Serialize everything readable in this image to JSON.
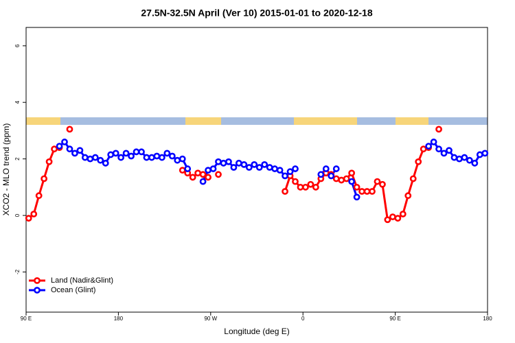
{
  "chart_data": {
    "type": "line",
    "title": "27.5N-32.5N April (Ver 10)   2015-01-01 to 2020-12-18",
    "xlabel": "Longitude (deg E)",
    "ylabel": "XCO2 - MLO trend (ppm)",
    "xlim": [
      90,
      540
    ],
    "ylim": [
      -3.42,
      6.65
    ],
    "xticks": [
      {
        "value": 90,
        "label": "90 E"
      },
      180,
      {
        "value": 270,
        "label": "90 W"
      },
      {
        "value": 360,
        "label": "0"
      },
      {
        "value": 450,
        "label": "90 E"
      },
      {
        "value": 540,
        "label": "180"
      }
    ],
    "yticks": [
      -2,
      0,
      2,
      4,
      6
    ],
    "legend": "bottomleft",
    "x": [
      92.5,
      97.5,
      102.5,
      107.5,
      112.5,
      117.5,
      122.5,
      127.5,
      132.5,
      137.5,
      142.5,
      147.5,
      152.5,
      157.5,
      162.5,
      167.5,
      172.5,
      177.5,
      182.5,
      187.5,
      192.5,
      197.5,
      202.5,
      207.5,
      212.5,
      217.5,
      222.5,
      227.5,
      232.5,
      237.5,
      242.5,
      247.5,
      252.5,
      257.5,
      262.5,
      267.5,
      272.5,
      277.5,
      282.5,
      287.5,
      292.5,
      297.5,
      302.5,
      307.5,
      312.5,
      317.5,
      322.5,
      327.5,
      332.5,
      337.5,
      342.5,
      347.5,
      352.5,
      357.5,
      362.5,
      367.5,
      372.5,
      377.5,
      382.5,
      387.5,
      392.5,
      397.5,
      402.5,
      407.5,
      412.5,
      417.5,
      422.5,
      427.5,
      432.5,
      437.5,
      442.5,
      447.5,
      452.5,
      457.5,
      462.5,
      467.5,
      472.5,
      477.5,
      482.5,
      487.5,
      492.5,
      497.5,
      502.5,
      507.5,
      512.5,
      517.5,
      522.5,
      527.5,
      532.5,
      537.5
    ],
    "series": [
      {
        "name": "Land (Nadir&Glint)",
        "color": "#ff0000",
        "values": [
          -0.1,
          0.05,
          0.7,
          1.3,
          1.9,
          2.35,
          2.4,
          null,
          3.05,
          null,
          null,
          null,
          null,
          null,
          null,
          null,
          null,
          null,
          null,
          null,
          null,
          null,
          null,
          null,
          null,
          null,
          null,
          null,
          null,
          null,
          1.6,
          1.5,
          1.35,
          1.5,
          1.45,
          1.35,
          null,
          1.45,
          null,
          null,
          null,
          null,
          null,
          null,
          null,
          null,
          null,
          null,
          null,
          null,
          0.85,
          1.4,
          1.2,
          1.0,
          1.0,
          1.1,
          1.0,
          1.3,
          1.5,
          1.45,
          1.3,
          1.25,
          1.3,
          1.5,
          1.0,
          0.85,
          0.85,
          0.85,
          1.2,
          1.1,
          -0.15,
          -0.05,
          -0.1,
          0.05,
          0.7,
          1.3,
          1.9,
          2.35,
          2.4,
          null,
          3.05,
          null,
          null,
          null,
          null,
          null,
          null,
          null,
          null,
          null
        ]
      },
      {
        "name": "Ocean (Glint)",
        "color": "#0000ff",
        "values": [
          null,
          null,
          null,
          null,
          null,
          null,
          2.45,
          2.6,
          2.35,
          2.2,
          2.3,
          2.05,
          2.0,
          2.05,
          1.95,
          1.85,
          2.15,
          2.2,
          2.05,
          2.2,
          2.1,
          2.25,
          2.25,
          2.05,
          2.05,
          2.1,
          2.05,
          2.2,
          2.1,
          1.95,
          2.0,
          1.65,
          null,
          null,
          1.2,
          1.6,
          1.65,
          1.9,
          1.85,
          1.9,
          1.7,
          1.85,
          1.8,
          1.7,
          1.8,
          1.7,
          1.8,
          1.7,
          1.65,
          1.6,
          1.4,
          1.55,
          1.65,
          null,
          null,
          null,
          null,
          1.45,
          1.65,
          1.4,
          1.65,
          null,
          null,
          1.2,
          0.65,
          null,
          null,
          null,
          null,
          null,
          null,
          null,
          null,
          null,
          null,
          null,
          null,
          null,
          2.45,
          2.6,
          2.35,
          2.2,
          2.3,
          2.05,
          2.0,
          2.05,
          1.95,
          1.85,
          2.15,
          2.2
        ]
      }
    ]
  }
}
